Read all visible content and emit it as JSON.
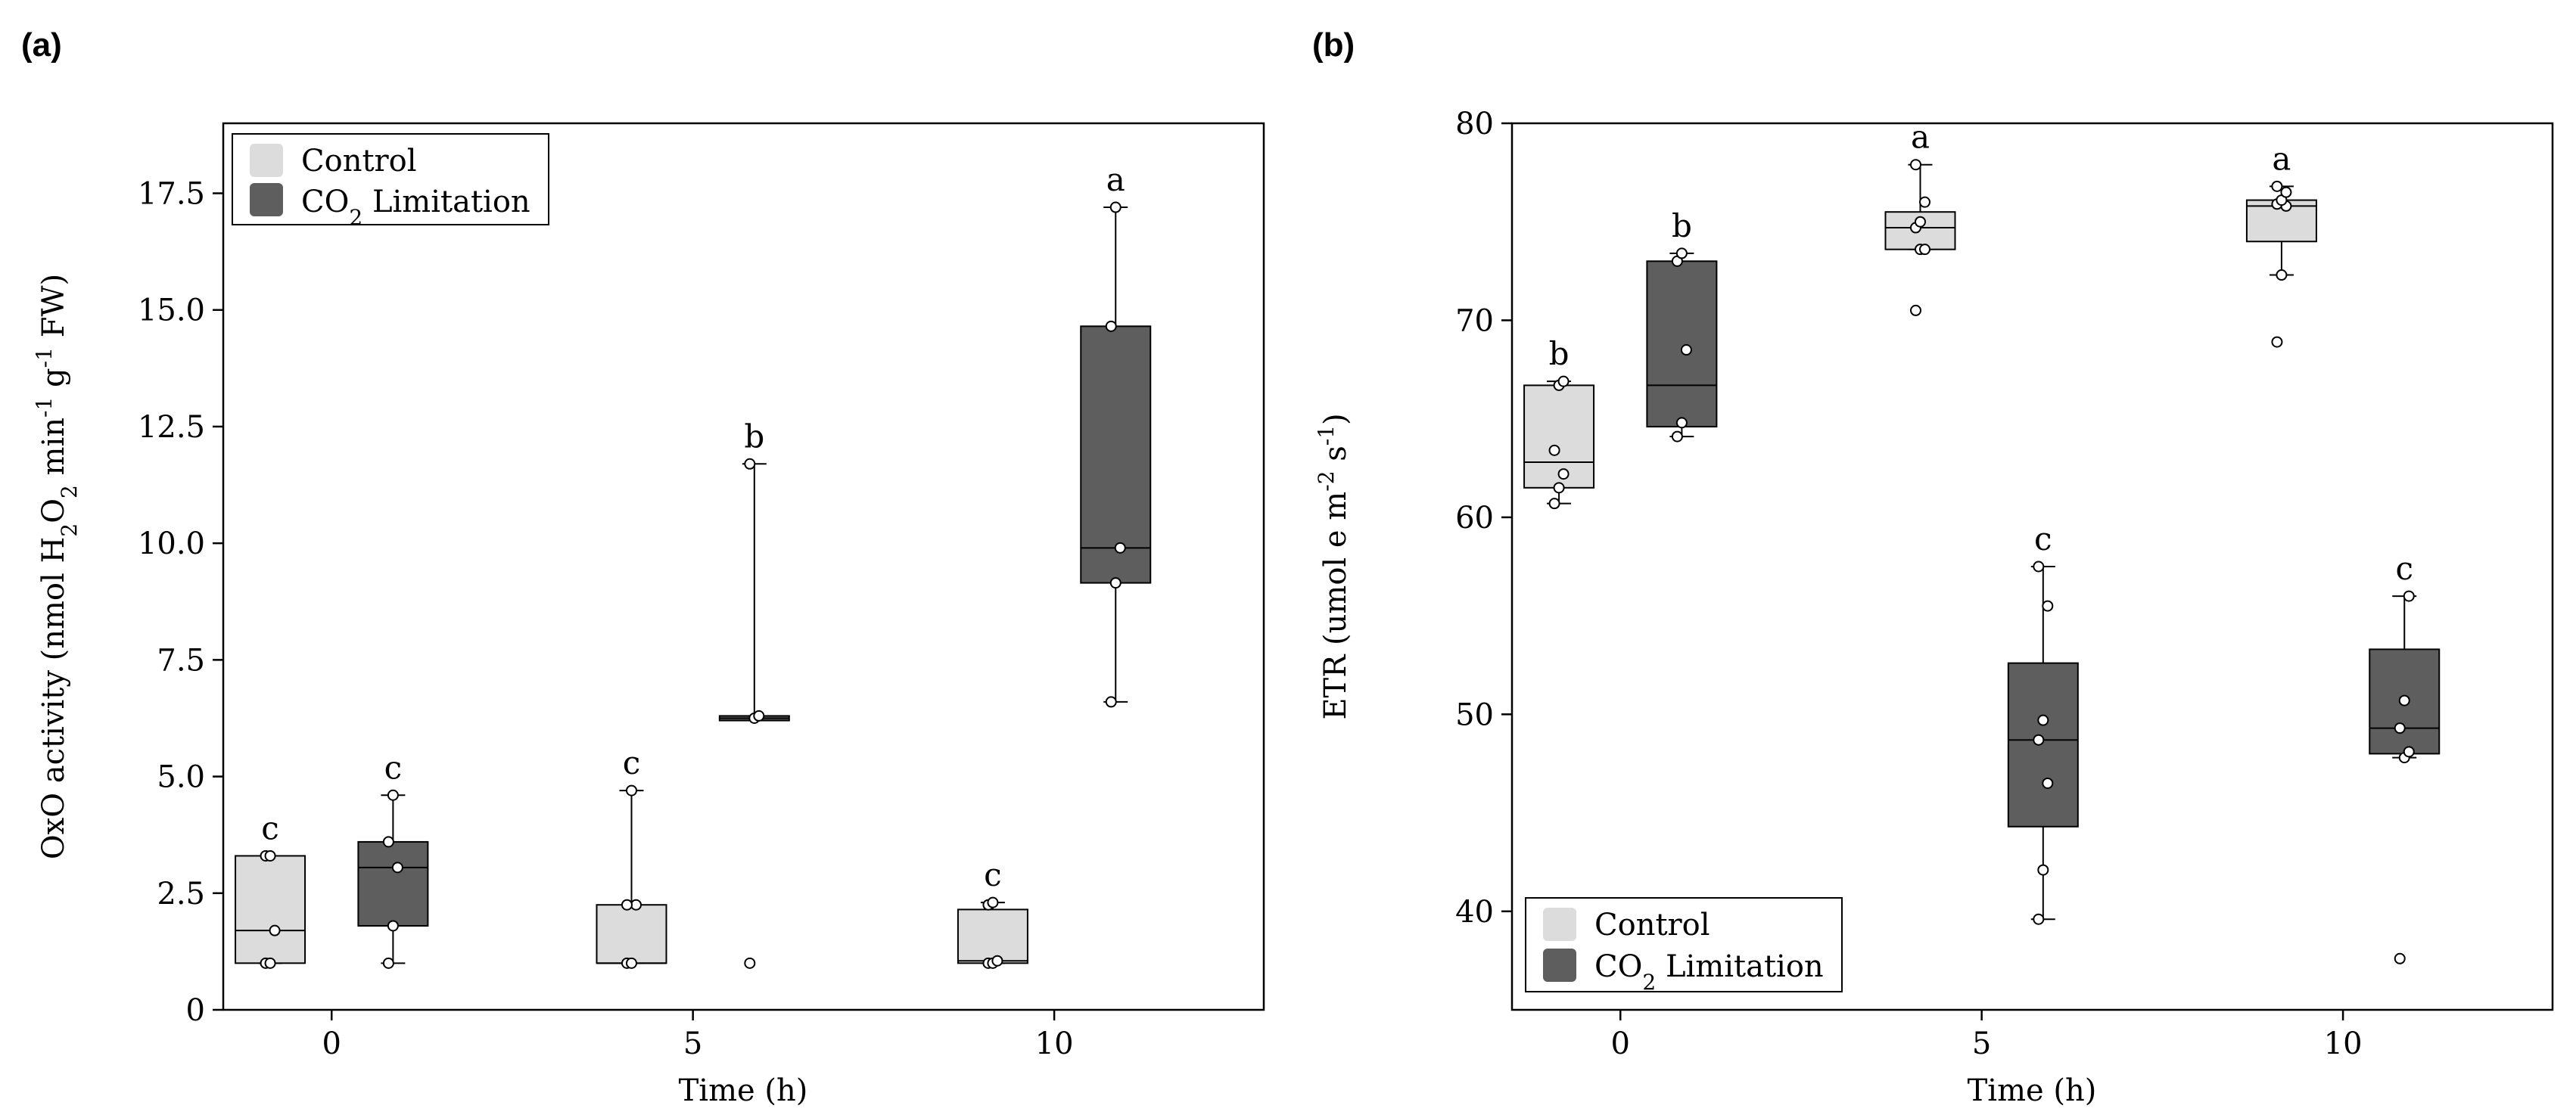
{
  "figure": {
    "colors": {
      "control": "#dcdcdc",
      "co2": "#5e5e5e",
      "axis": "#000000"
    }
  },
  "chart_data": [
    {
      "type": "box",
      "panel_label": "(a)",
      "title": "",
      "xlabel": "Time (h)",
      "ylabel": "OxO activity (nmol H2O2 min-1 g-1 FW)",
      "ylabel_parts": {
        "main": "OxO activity (nmol H",
        "sub_2a": "2",
        "o": "O",
        "sub_2b": "2",
        "min": " min",
        "sup_min": "-1",
        "g": " g",
        "sup_g": "-1",
        "fw": " FW)"
      },
      "xlim": [
        -1.5,
        12.9
      ],
      "ylim": [
        0,
        19.0
      ],
      "x_ticks": [
        0,
        5,
        10
      ],
      "y_ticks": [
        0,
        2.5,
        5.0,
        7.5,
        10.0,
        12.5,
        15.0,
        17.5
      ],
      "y_tick_labels": [
        "0",
        "2.5",
        "5.0",
        "7.5",
        "10.0",
        "12.5",
        "15.0",
        "17.5"
      ],
      "legend": {
        "position": "top-left",
        "entries": [
          "Control",
          "CO2 Limitation"
        ],
        "co2_parts": {
          "pre": "CO",
          "sub": "2",
          "post": " Limitation"
        }
      },
      "series": [
        {
          "name": "Control",
          "boxes": [
            {
              "x": -0.85,
              "q1": 1.0,
              "median": 1.7,
              "q3": 3.3,
              "whisker_low": 1.0,
              "whisker_high": 3.3,
              "letter": "c",
              "points": [
                1.0,
                1.0,
                1.7,
                3.3,
                3.3
              ]
            },
            {
              "x": 4.15,
              "q1": 1.0,
              "median": 1.0,
              "q3": 2.25,
              "whisker_low": 1.0,
              "whisker_high": 4.7,
              "letter": "c",
              "points": [
                1.0,
                1.0,
                2.25,
                2.25,
                4.7
              ]
            },
            {
              "x": 9.15,
              "q1": 1.0,
              "median": 1.05,
              "q3": 2.15,
              "whisker_low": 1.0,
              "whisker_high": 2.3,
              "letter": "c",
              "points": [
                1.0,
                1.0,
                1.05,
                2.25,
                2.3
              ]
            }
          ]
        },
        {
          "name": "CO2 Limitation",
          "boxes": [
            {
              "x": 0.85,
              "q1": 1.8,
              "median": 3.05,
              "q3": 3.6,
              "whisker_low": 1.0,
              "whisker_high": 4.6,
              "letter": "c",
              "points": [
                1.0,
                1.8,
                3.05,
                3.6,
                4.6
              ]
            },
            {
              "x": 5.85,
              "q1": 6.2,
              "median": 6.25,
              "q3": 6.3,
              "whisker_low": 6.2,
              "whisker_high": 11.7,
              "letter": "b",
              "points": [
                1.0,
                6.25,
                6.3,
                11.7
              ]
            },
            {
              "x": 10.85,
              "q1": 9.15,
              "median": 9.9,
              "q3": 14.65,
              "whisker_low": 6.6,
              "whisker_high": 17.2,
              "letter": "a",
              "points": [
                6.6,
                9.15,
                9.9,
                14.65,
                17.2
              ]
            }
          ]
        }
      ]
    },
    {
      "type": "box",
      "panel_label": "(b)",
      "title": "",
      "xlabel": "Time (h)",
      "ylabel": "ETR (umol e m-2 s-1)",
      "ylabel_parts": {
        "main": "ETR (umol e m",
        "sup_m": "-2",
        "s": " s",
        "sup_s": "-1",
        "close": ")"
      },
      "xlim": [
        -1.5,
        12.9
      ],
      "ylim": [
        35.0,
        80.0
      ],
      "x_ticks": [
        0,
        5,
        10
      ],
      "y_ticks": [
        40,
        50,
        60,
        70,
        80
      ],
      "y_tick_labels": [
        "40",
        "50",
        "60",
        "70",
        "80"
      ],
      "legend": {
        "position": "bottom-left",
        "entries": [
          "Control",
          "CO2 Limitation"
        ],
        "co2_parts": {
          "pre": "CO",
          "sub": "2",
          "post": " Limitation"
        }
      },
      "series": [
        {
          "name": "Control",
          "boxes": [
            {
              "x": -0.85,
              "q1": 61.5,
              "median": 62.8,
              "q3": 66.7,
              "whisker_low": 60.7,
              "whisker_high": 66.9,
              "letter": "b",
              "points": [
                60.7,
                61.5,
                62.2,
                63.4,
                66.7,
                66.9
              ]
            },
            {
              "x": 4.15,
              "q1": 73.6,
              "median": 74.7,
              "q3": 75.5,
              "whisker_low": 73.6,
              "whisker_high": 77.9,
              "letter": "a",
              "points": [
                70.5,
                73.6,
                73.6,
                74.7,
                75.0,
                76.0,
                77.9
              ]
            },
            {
              "x": 9.15,
              "q1": 74.0,
              "median": 75.8,
              "q3": 76.1,
              "whisker_low": 72.3,
              "whisker_high": 76.8,
              "letter": "a",
              "points": [
                68.9,
                72.3,
                75.8,
                75.9,
                76.1,
                76.5,
                76.8
              ]
            }
          ]
        },
        {
          "name": "CO2 Limitation",
          "boxes": [
            {
              "x": 0.85,
              "q1": 64.6,
              "median": 66.7,
              "q3": 73.0,
              "whisker_low": 64.1,
              "whisker_high": 73.4,
              "letter": "b",
              "points": [
                64.1,
                64.8,
                68.5,
                73.0,
                73.4
              ]
            },
            {
              "x": 5.85,
              "q1": 44.3,
              "median": 48.7,
              "q3": 52.6,
              "whisker_low": 39.6,
              "whisker_high": 57.5,
              "letter": "c",
              "points": [
                39.6,
                42.1,
                46.5,
                48.7,
                49.7,
                55.5,
                57.5
              ]
            },
            {
              "x": 10.85,
              "q1": 48.0,
              "median": 49.3,
              "q3": 53.3,
              "whisker_low": 47.8,
              "whisker_high": 56.0,
              "letter": "c",
              "points": [
                37.6,
                47.8,
                48.1,
                49.3,
                50.7,
                56.0
              ]
            }
          ]
        }
      ]
    }
  ]
}
